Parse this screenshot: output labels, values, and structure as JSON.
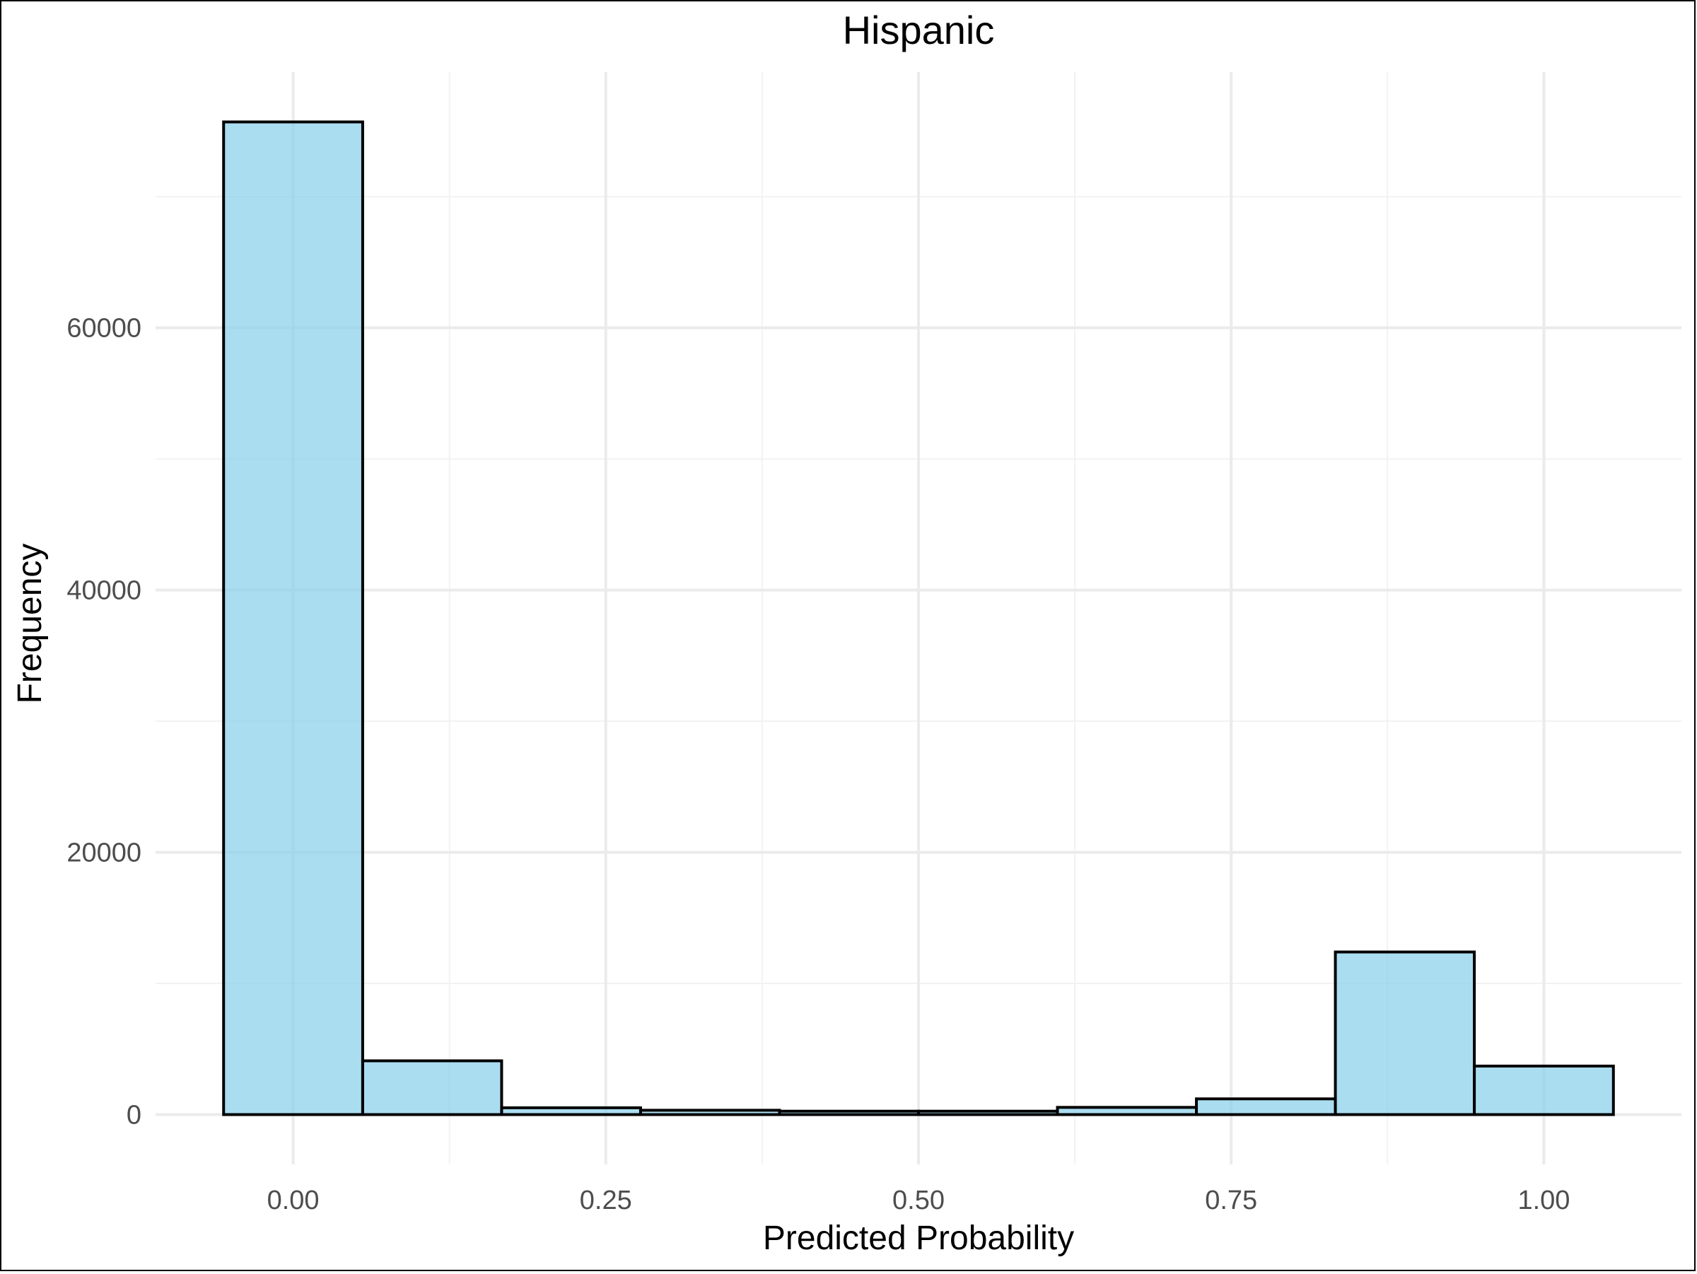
{
  "chart_data": {
    "type": "bar",
    "subtype": "histogram",
    "title": "Hispanic",
    "xlabel": "Predicted Probability",
    "ylabel": "Frequency",
    "bins": [
      {
        "x0": -0.0556,
        "x1": 0.0556,
        "count": 75700
      },
      {
        "x0": 0.0556,
        "x1": 0.1667,
        "count": 4100
      },
      {
        "x0": 0.1667,
        "x1": 0.2778,
        "count": 520
      },
      {
        "x0": 0.2778,
        "x1": 0.3889,
        "count": 330
      },
      {
        "x0": 0.3889,
        "x1": 0.5,
        "count": 260
      },
      {
        "x0": 0.5,
        "x1": 0.6111,
        "count": 260
      },
      {
        "x0": 0.6111,
        "x1": 0.7222,
        "count": 550
      },
      {
        "x0": 0.7222,
        "x1": 0.8333,
        "count": 1200
      },
      {
        "x0": 0.8333,
        "x1": 0.9444,
        "count": 12400
      },
      {
        "x0": 0.9444,
        "x1": 1.0556,
        "count": 3700
      }
    ],
    "x_ticks": [
      {
        "value": 0.0,
        "label": "0.00"
      },
      {
        "value": 0.25,
        "label": "0.25"
      },
      {
        "value": 0.5,
        "label": "0.50"
      },
      {
        "value": 0.75,
        "label": "0.75"
      },
      {
        "value": 1.0,
        "label": "1.00"
      }
    ],
    "y_ticks": [
      {
        "value": 0,
        "label": "0"
      },
      {
        "value": 20000,
        "label": "20000"
      },
      {
        "value": 40000,
        "label": "40000"
      },
      {
        "value": 60000,
        "label": "60000"
      }
    ],
    "xlim": [
      -0.11,
      1.11
    ],
    "ylim": [
      -3800,
      79500
    ],
    "grid": true,
    "legend": "none",
    "bar_fill": "#87ceeb",
    "bar_fill_opacity": 0.7,
    "bar_stroke": "#000000"
  }
}
